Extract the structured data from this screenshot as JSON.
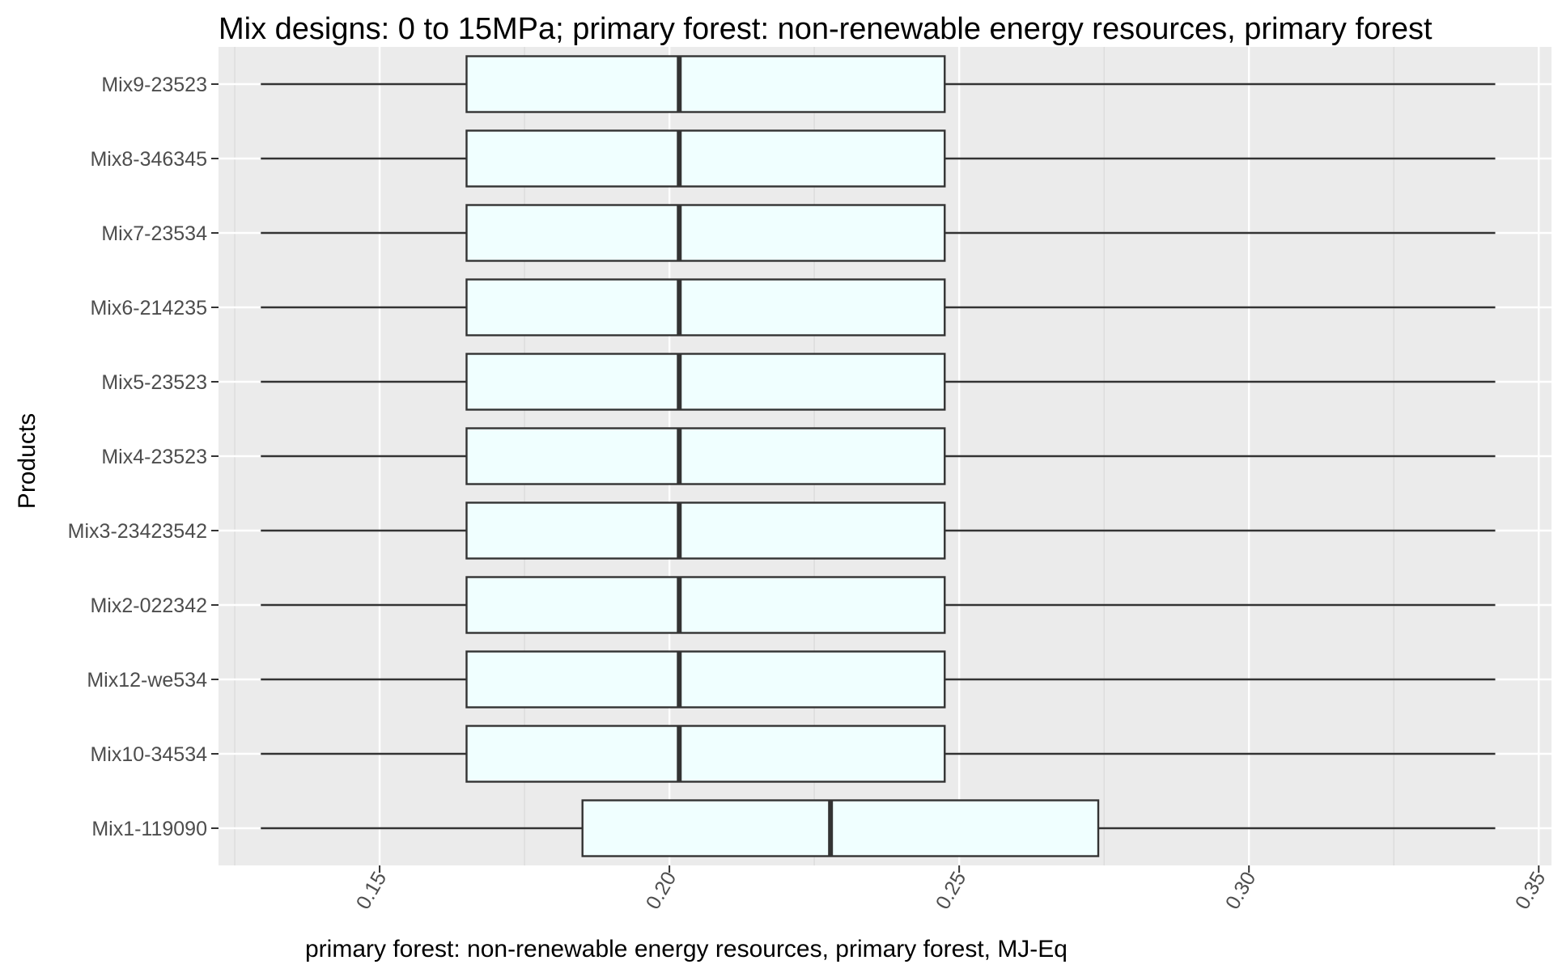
{
  "chart_data": {
    "type": "boxplot",
    "orientation": "horizontal",
    "title": "Mix designs: 0 to 15MPa; primary forest: non-renewable energy resources, primary forest",
    "xlabel": "primary forest: non-renewable energy resources, primary forest, MJ-Eq",
    "ylabel": "Products",
    "xlim": [
      0.1222,
      0.3522
    ],
    "x_ticks": [
      0.15,
      0.2,
      0.25,
      0.3,
      0.35
    ],
    "x_tick_labels": [
      "0.15",
      "0.20",
      "0.25",
      "0.30",
      "0.35"
    ],
    "grid": true,
    "categories": [
      "Mix1-119090",
      "Mix10-34534",
      "Mix12-we534",
      "Mix2-022342",
      "Mix3-23423542",
      "Mix4-23523",
      "Mix5-23523",
      "Mix6-214235",
      "Mix7-23534",
      "Mix8-346345",
      "Mix9-23523"
    ],
    "boxes": [
      {
        "label": "Mix1-119090",
        "min": 0.1295,
        "q1": 0.185,
        "median": 0.2278,
        "q3": 0.274,
        "max": 0.3425
      },
      {
        "label": "Mix10-34534",
        "min": 0.1295,
        "q1": 0.165,
        "median": 0.2017,
        "q3": 0.2475,
        "max": 0.3425
      },
      {
        "label": "Mix12-we534",
        "min": 0.1295,
        "q1": 0.165,
        "median": 0.2017,
        "q3": 0.2475,
        "max": 0.3425
      },
      {
        "label": "Mix2-022342",
        "min": 0.1295,
        "q1": 0.165,
        "median": 0.2017,
        "q3": 0.2475,
        "max": 0.3425
      },
      {
        "label": "Mix3-23423542",
        "min": 0.1295,
        "q1": 0.165,
        "median": 0.2017,
        "q3": 0.2475,
        "max": 0.3425
      },
      {
        "label": "Mix4-23523",
        "min": 0.1295,
        "q1": 0.165,
        "median": 0.2017,
        "q3": 0.2475,
        "max": 0.3425
      },
      {
        "label": "Mix5-23523",
        "min": 0.1295,
        "q1": 0.165,
        "median": 0.2017,
        "q3": 0.2475,
        "max": 0.3425
      },
      {
        "label": "Mix6-214235",
        "min": 0.1295,
        "q1": 0.165,
        "median": 0.2017,
        "q3": 0.2475,
        "max": 0.3425
      },
      {
        "label": "Mix7-23534",
        "min": 0.1295,
        "q1": 0.165,
        "median": 0.2017,
        "q3": 0.2475,
        "max": 0.3425
      },
      {
        "label": "Mix8-346345",
        "min": 0.1295,
        "q1": 0.165,
        "median": 0.2017,
        "q3": 0.2475,
        "max": 0.3425
      },
      {
        "label": "Mix9-23523",
        "min": 0.1295,
        "q1": 0.165,
        "median": 0.2017,
        "q3": 0.2475,
        "max": 0.3425
      }
    ],
    "colors": {
      "panel_background": "#ebebeb",
      "grid_major": "#ffffff",
      "grid_minor": "#d9d9d9",
      "box_fill": "#f0ffff",
      "box_stroke": "#333333",
      "tick_label": "#4d4d4d",
      "text": "#000000"
    }
  }
}
